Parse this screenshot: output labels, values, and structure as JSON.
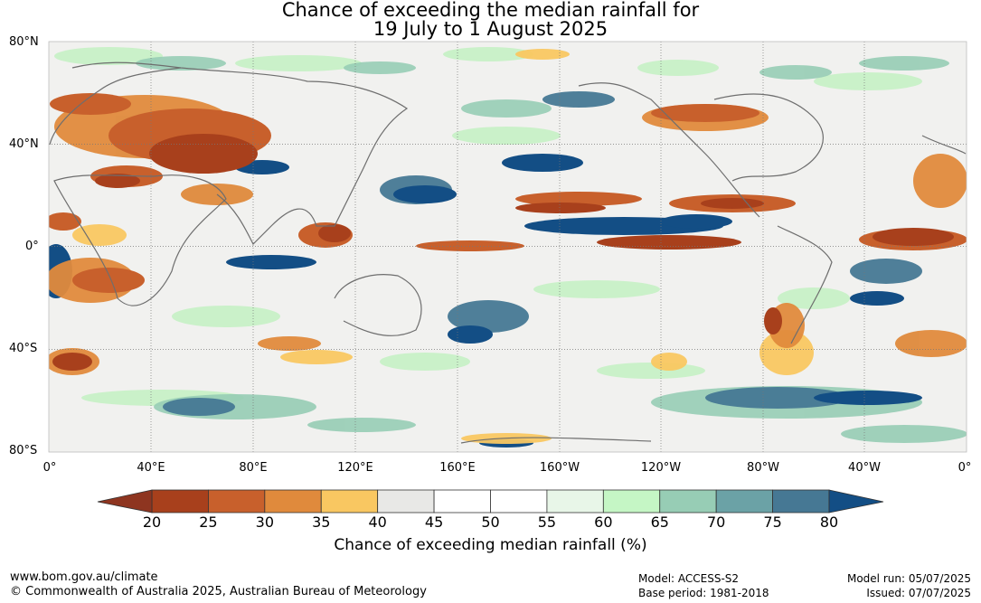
{
  "title": {
    "line1": "Chance of exceeding the median rainfall for",
    "line2": "19 July to 1 August 2025"
  },
  "map": {
    "projection": "equirectangular",
    "lat_labels": [
      "80°N",
      "40°N",
      "0°",
      "40°S",
      "80°S"
    ],
    "lon_labels": [
      "0°",
      "40°E",
      "80°E",
      "120°E",
      "160°E",
      "160°W",
      "120°W",
      "80°W",
      "40°W",
      "0°"
    ],
    "gridlines": true,
    "regions": [
      {
        "name": "central-asia-dry",
        "value": 22
      },
      {
        "name": "sahara-arabia-dry",
        "value": 25
      },
      {
        "name": "equatorial-pacific-wet",
        "value": 78
      },
      {
        "name": "southern-ocean-wet",
        "value": 72
      },
      {
        "name": "tropical-north-atlantic-dry",
        "value": 23
      },
      {
        "name": "maritime-continent-wet",
        "value": 75
      },
      {
        "name": "south-america-dry",
        "value": 27
      },
      {
        "name": "australia-neutral",
        "value": 45
      }
    ]
  },
  "colorbar": {
    "ticks": [
      "20",
      "25",
      "30",
      "35",
      "40",
      "45",
      "50",
      "55",
      "60",
      "65",
      "70",
      "75",
      "80"
    ],
    "colors": [
      "#a8401c",
      "#c8602c",
      "#e08a3c",
      "#f9c761",
      "#e8e8e6",
      "#ffffff",
      "#ffffff",
      "#e8f6e8",
      "#c5f6c5",
      "#97cdb5",
      "#6ba2a6",
      "#467894"
    ],
    "low_color": "#8e3520",
    "high_color": "#134e85",
    "label": "Chance of exceeding median rainfall (%)"
  },
  "footer": {
    "left_line1": "www.bom.gov.au/climate",
    "left_line2": "© Commonwealth of Australia 2025, Australian Bureau of Meteorology",
    "mid_line1": "Model: ACCESS-S2",
    "mid_line2": "Base period: 1981-2018",
    "right_line1": "Model run: 05/07/2025",
    "right_line2": "Issued: 07/07/2025"
  }
}
